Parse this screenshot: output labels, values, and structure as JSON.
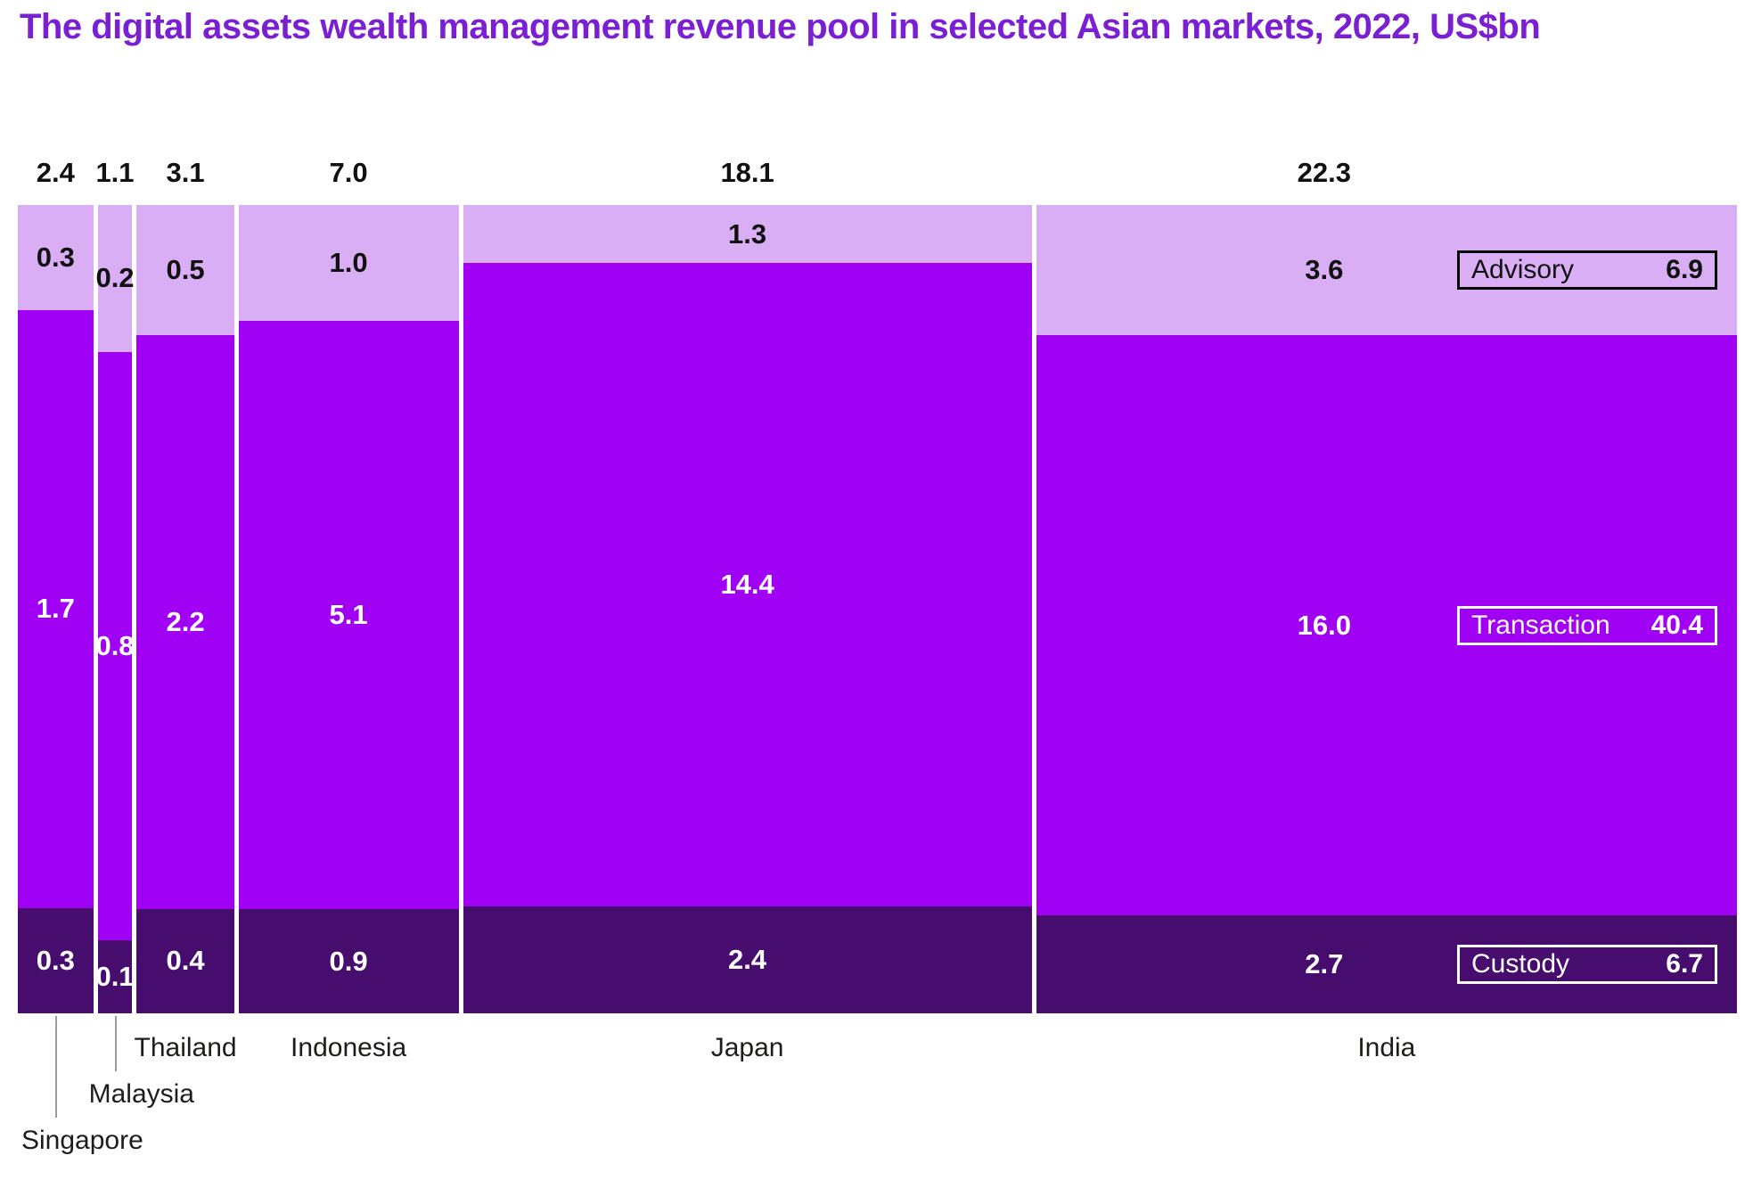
{
  "title": {
    "text": "The digital assets wealth management revenue pool in selected Asian markets, 2022, US$bn",
    "color": "#7a1fd2"
  },
  "chart_data": {
    "type": "bar",
    "variant": "marimekko-100pct-stacked",
    "title": "The digital assets wealth management revenue pool in selected Asian markets, 2022, US$bn",
    "unit": "US$bn",
    "year": "2022",
    "categories": [
      "Singapore",
      "Malaysia",
      "Thailand",
      "Indonesia",
      "Japan",
      "India"
    ],
    "totals": [
      2.4,
      1.1,
      3.1,
      7.0,
      18.1,
      22.3
    ],
    "series": [
      {
        "name": "Advisory",
        "total_label": "6.9",
        "values": [
          0.3,
          0.2,
          0.5,
          1.0,
          1.3,
          3.6
        ],
        "color": "#d9aef4",
        "label_color": "#111111"
      },
      {
        "name": "Transaction",
        "total_label": "40.4",
        "values": [
          1.7,
          0.8,
          2.2,
          5.1,
          14.4,
          16.0
        ],
        "color": "#a000f4",
        "label_color": "#ffffff"
      },
      {
        "name": "Custody",
        "total_label": "6.7",
        "values": [
          0.3,
          0.1,
          0.4,
          0.9,
          2.4,
          2.7
        ],
        "color": "#470d6e",
        "label_color": "#ffffff"
      }
    ],
    "legend_position": "right-inside",
    "grid": false,
    "column_gap_color": "#ffffff",
    "leader_line_color": "#9d9d97",
    "label_row": [
      3,
      2,
      1,
      1,
      1,
      1
    ],
    "label_offset_x": [
      0,
      0,
      0,
      0,
      0,
      -70
    ]
  },
  "legend": {
    "items": [
      {
        "label": "Advisory",
        "value": "6.9",
        "border_color": "#000000",
        "text_color": "#111111"
      },
      {
        "label": "Transaction",
        "value": "40.4",
        "border_color": "#ffffff",
        "text_color": "#ffffff"
      },
      {
        "label": "Custody",
        "value": "6.7",
        "border_color": "#ffffff",
        "text_color": "#ffffff"
      }
    ]
  }
}
